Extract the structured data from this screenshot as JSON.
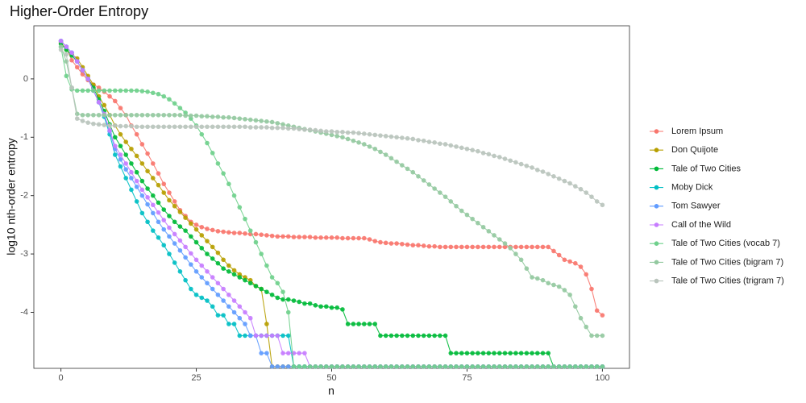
{
  "chart_data": {
    "type": "line",
    "title": "Higher-Order Entropy",
    "xlabel": "n",
    "ylabel": "log10 nth-order entropy",
    "xlim": [
      -5,
      105
    ],
    "ylim": [
      -4.96,
      0.91
    ],
    "xticks": [
      0,
      25,
      50,
      75,
      100
    ],
    "yticks": [
      0,
      -1,
      -2,
      -3,
      -4
    ],
    "grid": true,
    "legend": "right",
    "x": [
      0,
      1,
      2,
      3,
      4,
      5,
      6,
      7,
      8,
      9,
      10,
      11,
      12,
      13,
      14,
      15,
      16,
      17,
      18,
      19,
      20,
      21,
      22,
      23,
      24,
      25,
      26,
      27,
      28,
      29,
      30,
      31,
      32,
      33,
      34,
      35,
      36,
      37,
      38,
      39,
      40,
      41,
      42,
      43,
      44,
      45,
      46,
      47,
      48,
      49,
      50,
      51,
      52,
      53,
      54,
      55,
      56,
      57,
      58,
      59,
      60,
      61,
      62,
      63,
      64,
      65,
      66,
      67,
      68,
      69,
      70,
      71,
      72,
      73,
      74,
      75,
      76,
      77,
      78,
      79,
      80,
      81,
      82,
      83,
      84,
      85,
      86,
      87,
      88,
      89,
      90,
      91,
      92,
      93,
      94,
      95,
      96,
      97,
      98,
      99,
      100
    ],
    "series": [
      {
        "name": "Lorem Ipsum",
        "color": "#F8766D",
        "values": [
          0.65,
          0.55,
          0.32,
          0.2,
          0.08,
          -0.02,
          -0.1,
          -0.15,
          -0.22,
          -0.3,
          -0.38,
          -0.5,
          -0.62,
          -0.8,
          -0.95,
          -1.12,
          -1.28,
          -1.45,
          -1.62,
          -1.8,
          -1.95,
          -2.1,
          -2.25,
          -2.35,
          -2.45,
          -2.5,
          -2.54,
          -2.57,
          -2.59,
          -2.61,
          -2.62,
          -2.63,
          -2.64,
          -2.64,
          -2.65,
          -2.66,
          -2.66,
          -2.67,
          -2.68,
          -2.69,
          -2.7,
          -2.7,
          -2.7,
          -2.71,
          -2.71,
          -2.71,
          -2.71,
          -2.72,
          -2.72,
          -2.72,
          -2.72,
          -2.72,
          -2.73,
          -2.73,
          -2.73,
          -2.73,
          -2.73,
          -2.75,
          -2.78,
          -2.8,
          -2.81,
          -2.82,
          -2.82,
          -2.83,
          -2.84,
          -2.85,
          -2.85,
          -2.86,
          -2.87,
          -2.87,
          -2.88,
          -2.88,
          -2.88,
          -2.88,
          -2.88,
          -2.88,
          -2.88,
          -2.88,
          -2.88,
          -2.88,
          -2.88,
          -2.88,
          -2.88,
          -2.88,
          -2.88,
          -2.88,
          -2.88,
          -2.88,
          -2.88,
          -2.88,
          -2.88,
          -2.95,
          -3.02,
          -3.1,
          -3.13,
          -3.16,
          -3.22,
          -3.35,
          -3.6,
          -3.97,
          -4.05
        ]
      },
      {
        "name": "Don Quijote",
        "color": "#B79F00",
        "values": [
          0.62,
          0.5,
          0.42,
          0.35,
          0.2,
          0.05,
          -0.1,
          -0.3,
          -0.45,
          -0.62,
          -0.8,
          -0.95,
          -1.08,
          -1.2,
          -1.32,
          -1.45,
          -1.58,
          -1.7,
          -1.82,
          -1.95,
          -2.08,
          -2.18,
          -2.28,
          -2.38,
          -2.48,
          -2.58,
          -2.68,
          -2.78,
          -2.88,
          -2.98,
          -3.1,
          -3.2,
          -3.28,
          -3.35,
          -3.4,
          -3.45,
          -3.55,
          -3.6,
          -4.2,
          -4.93,
          -4.93,
          -4.93,
          -4.93,
          -4.93,
          -4.93,
          -4.93,
          -4.93,
          -4.93,
          -4.93,
          -4.93,
          -4.93,
          -4.93,
          -4.93,
          -4.93,
          -4.93,
          -4.93,
          -4.93,
          -4.93,
          -4.93,
          -4.93,
          -4.93,
          -4.93,
          -4.93,
          -4.93,
          -4.93,
          -4.93,
          -4.93,
          -4.93,
          -4.93,
          -4.93,
          -4.93,
          -4.93,
          -4.93,
          -4.93,
          -4.93,
          -4.93,
          -4.93,
          -4.93,
          -4.93,
          -4.93,
          -4.93,
          -4.93,
          -4.93,
          -4.93,
          -4.93,
          -4.93,
          -4.93,
          -4.93,
          -4.93,
          -4.93,
          -4.93,
          -4.93,
          -4.93,
          -4.93,
          -4.93,
          -4.93,
          -4.93,
          -4.93,
          -4.93,
          -4.93,
          -4.93
        ]
      },
      {
        "name": "Tale of Two Cities",
        "color": "#00BA38",
        "values": [
          0.6,
          0.5,
          0.4,
          0.3,
          0.15,
          0.0,
          -0.15,
          -0.35,
          -0.55,
          -0.78,
          -1.0,
          -1.15,
          -1.3,
          -1.45,
          -1.6,
          -1.75,
          -1.88,
          -2.0,
          -2.12,
          -2.24,
          -2.35,
          -2.45,
          -2.53,
          -2.6,
          -2.7,
          -2.8,
          -2.9,
          -3.0,
          -3.08,
          -3.16,
          -3.25,
          -3.3,
          -3.35,
          -3.4,
          -3.45,
          -3.5,
          -3.55,
          -3.6,
          -3.65,
          -3.7,
          -3.75,
          -3.78,
          -3.78,
          -3.8,
          -3.82,
          -3.85,
          -3.85,
          -3.88,
          -3.9,
          -3.9,
          -3.92,
          -3.92,
          -3.95,
          -4.2,
          -4.2,
          -4.2,
          -4.2,
          -4.2,
          -4.2,
          -4.4,
          -4.4,
          -4.4,
          -4.4,
          -4.4,
          -4.4,
          -4.4,
          -4.4,
          -4.4,
          -4.4,
          -4.4,
          -4.4,
          -4.4,
          -4.7,
          -4.7,
          -4.7,
          -4.7,
          -4.7,
          -4.7,
          -4.7,
          -4.7,
          -4.7,
          -4.7,
          -4.7,
          -4.7,
          -4.7,
          -4.7,
          -4.7,
          -4.7,
          -4.7,
          -4.7,
          -4.7,
          -4.93,
          -4.93,
          -4.93,
          -4.93,
          -4.93,
          -4.93,
          -4.93,
          -4.93,
          -4.93,
          -4.93
        ]
      },
      {
        "name": "Moby Dick",
        "color": "#00BFC4",
        "values": [
          0.65,
          0.55,
          0.45,
          0.3,
          0.15,
          0.0,
          -0.2,
          -0.4,
          -0.65,
          -0.95,
          -1.3,
          -1.5,
          -1.7,
          -1.9,
          -2.1,
          -2.3,
          -2.45,
          -2.6,
          -2.72,
          -2.85,
          -3.0,
          -3.15,
          -3.3,
          -3.45,
          -3.6,
          -3.7,
          -3.75,
          -3.8,
          -3.9,
          -4.05,
          -4.05,
          -4.2,
          -4.2,
          -4.4,
          -4.4,
          -4.4,
          -4.4,
          -4.4,
          -4.4,
          -4.4,
          -4.4,
          -4.4,
          -4.4,
          -4.93,
          -4.93,
          -4.93,
          -4.93,
          -4.93,
          -4.93,
          -4.93,
          -4.93,
          -4.93,
          -4.93,
          -4.93,
          -4.93,
          -4.93,
          -4.93,
          -4.93,
          -4.93,
          -4.93,
          -4.93,
          -4.93,
          -4.93,
          -4.93,
          -4.93,
          -4.93,
          -4.93,
          -4.93,
          -4.93,
          -4.93,
          -4.93,
          -4.93,
          -4.93,
          -4.93,
          -4.93,
          -4.93,
          -4.93,
          -4.93,
          -4.93,
          -4.93,
          -4.93,
          -4.93,
          -4.93,
          -4.93,
          -4.93,
          -4.93,
          -4.93,
          -4.93,
          -4.93,
          -4.93,
          -4.93,
          -4.93,
          -4.93,
          -4.93,
          -4.93,
          -4.93,
          -4.93,
          -4.93,
          -4.93,
          -4.93,
          -4.93
        ]
      },
      {
        "name": "Tom Sawyer",
        "color": "#619CFF",
        "values": [
          0.65,
          0.55,
          0.45,
          0.3,
          0.15,
          0.0,
          -0.2,
          -0.4,
          -0.62,
          -0.9,
          -1.2,
          -1.38,
          -1.55,
          -1.7,
          -1.85,
          -2.0,
          -2.15,
          -2.3,
          -2.45,
          -2.58,
          -2.7,
          -2.82,
          -2.94,
          -3.06,
          -3.18,
          -3.3,
          -3.4,
          -3.5,
          -3.6,
          -3.7,
          -3.8,
          -3.9,
          -4.0,
          -4.1,
          -4.2,
          -4.4,
          -4.4,
          -4.7,
          -4.7,
          -4.93,
          -4.93,
          -4.93,
          -4.93,
          -4.93,
          -4.93,
          -4.93,
          -4.93,
          -4.93,
          -4.93,
          -4.93,
          -4.93,
          -4.93,
          -4.93,
          -4.93,
          -4.93,
          -4.93,
          -4.93,
          -4.93,
          -4.93,
          -4.93,
          -4.93,
          -4.93,
          -4.93,
          -4.93,
          -4.93,
          -4.93,
          -4.93,
          -4.93,
          -4.93,
          -4.93,
          -4.93,
          -4.93,
          -4.93,
          -4.93,
          -4.93,
          -4.93,
          -4.93,
          -4.93,
          -4.93,
          -4.93,
          -4.93,
          -4.93,
          -4.93,
          -4.93,
          -4.93,
          -4.93,
          -4.93,
          -4.93,
          -4.93,
          -4.93,
          -4.93,
          -4.93,
          -4.93,
          -4.93,
          -4.93,
          -4.93,
          -4.93,
          -4.93,
          -4.93,
          -4.93,
          -4.93
        ]
      },
      {
        "name": "Call of the Wild",
        "color": "#C77CFF",
        "values": [
          0.65,
          0.55,
          0.45,
          0.3,
          0.15,
          0.0,
          -0.2,
          -0.4,
          -0.6,
          -0.88,
          -1.15,
          -1.3,
          -1.45,
          -1.6,
          -1.75,
          -1.9,
          -2.03,
          -2.16,
          -2.29,
          -2.42,
          -2.55,
          -2.66,
          -2.77,
          -2.88,
          -2.99,
          -3.1,
          -3.2,
          -3.3,
          -3.4,
          -3.5,
          -3.6,
          -3.7,
          -3.8,
          -3.9,
          -4.0,
          -4.1,
          -4.4,
          -4.4,
          -4.4,
          -4.4,
          -4.4,
          -4.7,
          -4.7,
          -4.7,
          -4.7,
          -4.7,
          -4.93,
          -4.93,
          -4.93,
          -4.93,
          -4.93,
          -4.93,
          -4.93,
          -4.93,
          -4.93,
          -4.93,
          -4.93,
          -4.93,
          -4.93,
          -4.93,
          -4.93,
          -4.93,
          -4.93,
          -4.93,
          -4.93,
          -4.93,
          -4.93,
          -4.93,
          -4.93,
          -4.93,
          -4.93,
          -4.93,
          -4.93,
          -4.93,
          -4.93,
          -4.93,
          -4.93,
          -4.93,
          -4.93,
          -4.93,
          -4.93,
          -4.93,
          -4.93,
          -4.93,
          -4.93,
          -4.93,
          -4.93,
          -4.93,
          -4.93,
          -4.93,
          -4.93,
          -4.93,
          -4.93,
          -4.93,
          -4.93,
          -4.93,
          -4.93,
          -4.93,
          -4.93,
          -4.93,
          -4.93
        ]
      },
      {
        "name": "Tale of Two Cities (vocab 7)",
        "color": "#6FD08C",
        "values": [
          0.55,
          0.05,
          -0.18,
          -0.2,
          -0.2,
          -0.2,
          -0.2,
          -0.2,
          -0.2,
          -0.2,
          -0.2,
          -0.2,
          -0.2,
          -0.2,
          -0.2,
          -0.21,
          -0.22,
          -0.24,
          -0.26,
          -0.3,
          -0.35,
          -0.42,
          -0.5,
          -0.58,
          -0.68,
          -0.8,
          -0.95,
          -1.1,
          -1.27,
          -1.45,
          -1.62,
          -1.8,
          -2.0,
          -2.2,
          -2.4,
          -2.6,
          -2.8,
          -3.0,
          -3.2,
          -3.4,
          -3.5,
          -3.65,
          -4.0,
          -4.93,
          -4.93,
          -4.93,
          -4.93,
          -4.93,
          -4.93,
          -4.93,
          -4.93,
          -4.93,
          -4.93,
          -4.93,
          -4.93,
          -4.93,
          -4.93,
          -4.93,
          -4.93,
          -4.93,
          -4.93,
          -4.93,
          -4.93,
          -4.93,
          -4.93,
          -4.93,
          -4.93,
          -4.93,
          -4.93,
          -4.93,
          -4.93,
          -4.93,
          -4.93,
          -4.93,
          -4.93,
          -4.93,
          -4.93,
          -4.93,
          -4.93,
          -4.93,
          -4.93,
          -4.93,
          -4.93,
          -4.93,
          -4.93,
          -4.93,
          -4.93,
          -4.93,
          -4.93,
          -4.93,
          -4.93,
          -4.93,
          -4.93,
          -4.93,
          -4.93,
          -4.93,
          -4.93,
          -4.93,
          -4.93,
          -4.93,
          -4.93
        ]
      },
      {
        "name": "Tale of Two Cities (bigram 7)",
        "color": "#93C9A0",
        "values": [
          0.55,
          0.3,
          -0.15,
          -0.6,
          -0.62,
          -0.62,
          -0.62,
          -0.62,
          -0.62,
          -0.62,
          -0.62,
          -0.62,
          -0.62,
          -0.62,
          -0.62,
          -0.62,
          -0.62,
          -0.62,
          -0.62,
          -0.62,
          -0.62,
          -0.62,
          -0.62,
          -0.63,
          -0.63,
          -0.63,
          -0.64,
          -0.64,
          -0.65,
          -0.65,
          -0.66,
          -0.66,
          -0.67,
          -0.68,
          -0.69,
          -0.7,
          -0.71,
          -0.72,
          -0.73,
          -0.74,
          -0.76,
          -0.78,
          -0.8,
          -0.82,
          -0.84,
          -0.86,
          -0.88,
          -0.9,
          -0.92,
          -0.94,
          -0.96,
          -0.98,
          -1.0,
          -1.03,
          -1.06,
          -1.09,
          -1.12,
          -1.16,
          -1.2,
          -1.25,
          -1.3,
          -1.36,
          -1.42,
          -1.48,
          -1.54,
          -1.6,
          -1.67,
          -1.74,
          -1.81,
          -1.88,
          -1.95,
          -2.02,
          -2.1,
          -2.18,
          -2.26,
          -2.33,
          -2.4,
          -2.47,
          -2.54,
          -2.61,
          -2.68,
          -2.75,
          -2.82,
          -2.9,
          -3.0,
          -3.1,
          -3.25,
          -3.4,
          -3.42,
          -3.45,
          -3.5,
          -3.53,
          -3.56,
          -3.62,
          -3.7,
          -3.9,
          -4.1,
          -4.25,
          -4.4,
          -4.4,
          -4.4
        ]
      },
      {
        "name": "Tale of Two Cities (trigram 7)",
        "color": "#B9C4BC",
        "values": [
          0.5,
          0.42,
          -0.15,
          -0.68,
          -0.72,
          -0.75,
          -0.77,
          -0.78,
          -0.79,
          -0.8,
          -0.8,
          -0.81,
          -0.81,
          -0.81,
          -0.82,
          -0.82,
          -0.82,
          -0.82,
          -0.82,
          -0.82,
          -0.82,
          -0.82,
          -0.82,
          -0.82,
          -0.82,
          -0.82,
          -0.82,
          -0.82,
          -0.82,
          -0.82,
          -0.82,
          -0.82,
          -0.82,
          -0.82,
          -0.82,
          -0.83,
          -0.83,
          -0.83,
          -0.83,
          -0.84,
          -0.84,
          -0.84,
          -0.85,
          -0.85,
          -0.86,
          -0.87,
          -0.87,
          -0.88,
          -0.89,
          -0.9,
          -0.9,
          -0.91,
          -0.91,
          -0.92,
          -0.92,
          -0.93,
          -0.94,
          -0.95,
          -0.96,
          -0.97,
          -0.98,
          -0.99,
          -1.0,
          -1.01,
          -1.02,
          -1.03,
          -1.05,
          -1.06,
          -1.08,
          -1.09,
          -1.11,
          -1.12,
          -1.14,
          -1.16,
          -1.18,
          -1.2,
          -1.22,
          -1.24,
          -1.27,
          -1.29,
          -1.32,
          -1.34,
          -1.37,
          -1.4,
          -1.43,
          -1.46,
          -1.49,
          -1.52,
          -1.56,
          -1.59,
          -1.63,
          -1.67,
          -1.71,
          -1.75,
          -1.79,
          -1.84,
          -1.89,
          -1.95,
          -2.02,
          -2.1,
          -2.16
        ]
      }
    ]
  }
}
